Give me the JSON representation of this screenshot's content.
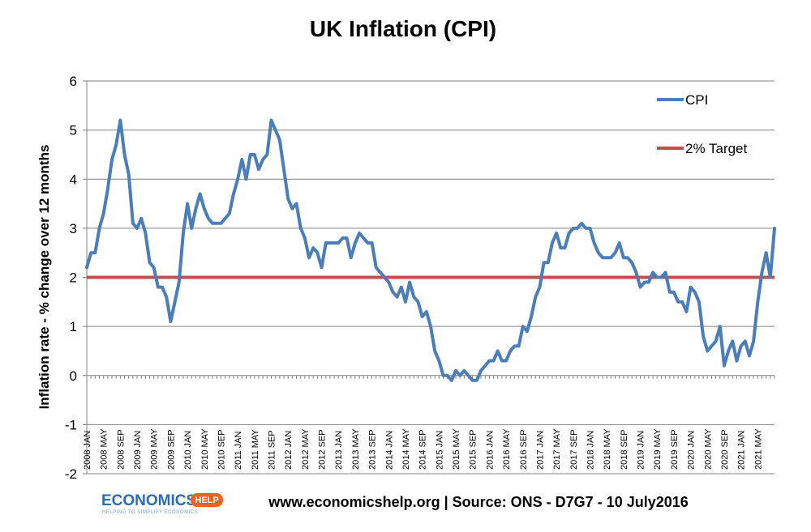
{
  "chart_data": {
    "type": "line",
    "title": "UK Inflation (CPI)",
    "ylabel": "Inflation rate  - % change over 12 months",
    "xlabel": "",
    "ylim": [
      -2,
      6
    ],
    "yticks": [
      -2,
      -1,
      0,
      1,
      2,
      3,
      4,
      5,
      6
    ],
    "grid": true,
    "legend_position": "top-right",
    "x_tick_labels": [
      "2008 JAN",
      "2008 MAY",
      "2008 SEP",
      "2009 JAN",
      "2009 MAY",
      "2009 SEP",
      "2010 JAN",
      "2010 MAY",
      "2010 SEP",
      "2011 JAN",
      "2011 MAY",
      "2011 SEP",
      "2012 JAN",
      "2012 MAY",
      "2012 SEP",
      "2013 JAN",
      "2013 MAY",
      "2013 SEP",
      "2014 JAN",
      "2014 MAY",
      "2014 SEP",
      "2015 JAN",
      "2015 MAY",
      "2015 SEP",
      "2016 JAN",
      "2016 MAY",
      "2016 SEP",
      "2017 JAN",
      "2017 MAY",
      "2017 SEP",
      "2018 JAN",
      "2018 MAY",
      "2018 SEP",
      "2019 JAN",
      "2019 MAY",
      "2019 SEP",
      "2020 JAN",
      "2020 MAY",
      "2020 SEP",
      "2021 JAN",
      "2021 MAY"
    ],
    "x_start": "2008 JAN",
    "x_frequency": "monthly",
    "series": [
      {
        "name": "CPI",
        "color": "#4a7ebb",
        "values": [
          2.2,
          2.5,
          2.5,
          3.0,
          3.3,
          3.8,
          4.4,
          4.7,
          5.2,
          4.5,
          4.1,
          3.1,
          3.0,
          3.2,
          2.9,
          2.3,
          2.2,
          1.8,
          1.8,
          1.6,
          1.1,
          1.5,
          1.9,
          2.9,
          3.5,
          3.0,
          3.4,
          3.7,
          3.4,
          3.2,
          3.1,
          3.1,
          3.1,
          3.2,
          3.3,
          3.7,
          4.0,
          4.4,
          4.0,
          4.5,
          4.5,
          4.2,
          4.4,
          4.5,
          5.2,
          5.0,
          4.8,
          4.2,
          3.6,
          3.4,
          3.5,
          3.0,
          2.8,
          2.4,
          2.6,
          2.5,
          2.2,
          2.7,
          2.7,
          2.7,
          2.7,
          2.8,
          2.8,
          2.4,
          2.7,
          2.9,
          2.8,
          2.7,
          2.7,
          2.2,
          2.1,
          2.0,
          1.9,
          1.7,
          1.6,
          1.8,
          1.5,
          1.9,
          1.6,
          1.5,
          1.2,
          1.3,
          1.0,
          0.5,
          0.3,
          0.0,
          0.0,
          -0.1,
          0.1,
          0.0,
          0.1,
          0.0,
          -0.1,
          -0.1,
          0.1,
          0.2,
          0.3,
          0.3,
          0.5,
          0.3,
          0.3,
          0.5,
          0.6,
          0.6,
          1.0,
          0.9,
          1.2,
          1.6,
          1.8,
          2.3,
          2.3,
          2.7,
          2.9,
          2.6,
          2.6,
          2.9,
          3.0,
          3.0,
          3.1,
          3.0,
          3.0,
          2.7,
          2.5,
          2.4,
          2.4,
          2.4,
          2.5,
          2.7,
          2.4,
          2.4,
          2.3,
          2.1,
          1.8,
          1.9,
          1.9,
          2.1,
          2.0,
          2.0,
          2.1,
          1.7,
          1.7,
          1.5,
          1.5,
          1.3,
          1.8,
          1.7,
          1.5,
          0.8,
          0.5,
          0.6,
          0.7,
          1.0,
          0.2,
          0.5,
          0.7,
          0.3,
          0.6,
          0.7,
          0.4,
          0.7,
          1.5,
          2.1,
          2.5,
          2.0,
          3.0
        ]
      },
      {
        "name": "2% Target",
        "color": "#c0504d",
        "constant": 2
      }
    ]
  },
  "legend": {
    "cpi_label": "CPI",
    "target_label": "2% Target"
  },
  "footer": {
    "source_text": "www.economicshelp.org | Source: ONS - D7G7 - 10 July2016"
  },
  "logo": {
    "main": "ECONOMICS",
    "badge": "HELP",
    "tagline": "HELPING TO SIMPLIFY ECONOMICS"
  }
}
